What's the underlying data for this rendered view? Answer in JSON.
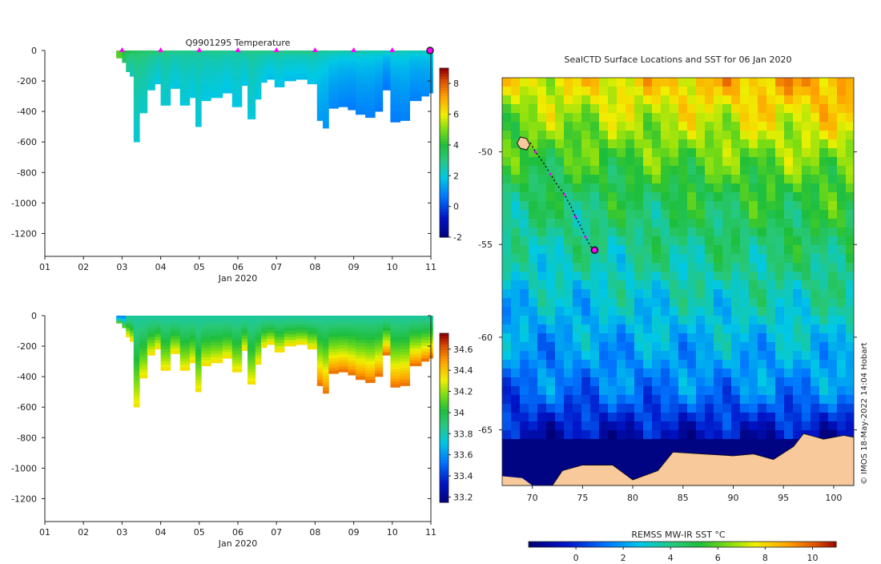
{
  "colors": {
    "axis": "#222222",
    "marker": "#ff00ff",
    "land": "#f7c99b",
    "water_dark": "#0a0a78"
  },
  "chart_data": [
    {
      "id": "temperature",
      "type": "heatmap",
      "title": "Q9901295  Temperature",
      "xlabel": "Jan 2020",
      "x_ticks": [
        "01",
        "02",
        "03",
        "04",
        "05",
        "06",
        "07",
        "08",
        "09",
        "10",
        "11"
      ],
      "y_ticks": [
        0,
        -200,
        -400,
        -600,
        -800,
        -1000,
        -1200
      ],
      "ylim": [
        -1350,
        0
      ],
      "xlim": [
        1,
        11
      ],
      "colorbar": {
        "ticks": [
          -2,
          0,
          2,
          4,
          6,
          8
        ],
        "range": [
          -2,
          9
        ]
      },
      "surfacing_markers_days": [
        3,
        4,
        5,
        6,
        7,
        8,
        9,
        10,
        11
      ],
      "profiles": [
        {
          "day": 2.85,
          "depth": 50,
          "surface_value": 4.6,
          "deep_value": 4.6
        },
        {
          "day": 3.0,
          "depth": 80,
          "surface_value": 4.0,
          "deep_value": 3.4
        },
        {
          "day": 3.1,
          "depth": 140,
          "surface_value": 3.8,
          "deep_value": 2.8
        },
        {
          "day": 3.2,
          "depth": 170,
          "surface_value": 3.6,
          "deep_value": 2.4
        },
        {
          "day": 3.3,
          "depth": 600,
          "surface_value": 3.5,
          "deep_value": 2.2
        },
        {
          "day": 3.45,
          "depth": 410,
          "surface_value": 3.4,
          "deep_value": 2.3
        },
        {
          "day": 3.65,
          "depth": 260,
          "surface_value": 3.3,
          "deep_value": 2.2
        },
        {
          "day": 3.85,
          "depth": 220,
          "surface_value": 3.2,
          "deep_value": 2.0
        },
        {
          "day": 4.0,
          "depth": 360,
          "surface_value": 3.1,
          "deep_value": 2.2
        },
        {
          "day": 4.25,
          "depth": 250,
          "surface_value": 3.0,
          "deep_value": 2.0
        },
        {
          "day": 4.5,
          "depth": 360,
          "surface_value": 3.0,
          "deep_value": 2.1
        },
        {
          "day": 4.75,
          "depth": 310,
          "surface_value": 3.0,
          "deep_value": 2.0
        },
        {
          "day": 4.9,
          "depth": 500,
          "surface_value": 2.9,
          "deep_value": 2.1
        },
        {
          "day": 5.05,
          "depth": 330,
          "surface_value": 2.9,
          "deep_value": 2.0
        },
        {
          "day": 5.3,
          "depth": 310,
          "surface_value": 3.0,
          "deep_value": 2.0
        },
        {
          "day": 5.6,
          "depth": 280,
          "surface_value": 2.9,
          "deep_value": 1.9
        },
        {
          "day": 5.85,
          "depth": 370,
          "surface_value": 2.9,
          "deep_value": 2.0
        },
        {
          "day": 6.1,
          "depth": 230,
          "surface_value": 3.0,
          "deep_value": 1.9
        },
        {
          "day": 6.25,
          "depth": 450,
          "surface_value": 3.0,
          "deep_value": 2.1
        },
        {
          "day": 6.45,
          "depth": 320,
          "surface_value": 3.0,
          "deep_value": 2.0
        },
        {
          "day": 6.6,
          "depth": 210,
          "surface_value": 3.0,
          "deep_value": 1.9
        },
        {
          "day": 6.75,
          "depth": 190,
          "surface_value": 3.0,
          "deep_value": 1.8
        },
        {
          "day": 6.95,
          "depth": 240,
          "surface_value": 3.0,
          "deep_value": 1.9
        },
        {
          "day": 7.2,
          "depth": 200,
          "surface_value": 3.0,
          "deep_value": 1.8
        },
        {
          "day": 7.5,
          "depth": 190,
          "surface_value": 3.0,
          "deep_value": 1.8
        },
        {
          "day": 7.8,
          "depth": 220,
          "surface_value": 3.0,
          "deep_value": 1.9
        },
        {
          "day": 8.05,
          "depth": 460,
          "surface_value": 2.8,
          "deep_value": 1.3
        },
        {
          "day": 8.2,
          "depth": 510,
          "surface_value": 2.7,
          "deep_value": 1.2
        },
        {
          "day": 8.35,
          "depth": 380,
          "surface_value": 2.7,
          "deep_value": 1.0
        },
        {
          "day": 8.6,
          "depth": 370,
          "surface_value": 2.6,
          "deep_value": 0.9
        },
        {
          "day": 8.85,
          "depth": 390,
          "surface_value": 2.6,
          "deep_value": 0.8
        },
        {
          "day": 9.05,
          "depth": 420,
          "surface_value": 2.6,
          "deep_value": 0.9
        },
        {
          "day": 9.3,
          "depth": 440,
          "surface_value": 2.5,
          "deep_value": 0.9
        },
        {
          "day": 9.55,
          "depth": 400,
          "surface_value": 2.5,
          "deep_value": 0.8
        },
        {
          "day": 9.75,
          "depth": 260,
          "surface_value": 2.4,
          "deep_value": 0.7
        },
        {
          "day": 9.95,
          "depth": 470,
          "surface_value": 2.5,
          "deep_value": 0.8
        },
        {
          "day": 10.2,
          "depth": 460,
          "surface_value": 2.5,
          "deep_value": 0.9
        },
        {
          "day": 10.45,
          "depth": 330,
          "surface_value": 2.4,
          "deep_value": 0.9
        },
        {
          "day": 10.75,
          "depth": 300,
          "surface_value": 2.4,
          "deep_value": 1.0
        },
        {
          "day": 10.95,
          "depth": 280,
          "surface_value": 2.4,
          "deep_value": 1.1
        }
      ]
    },
    {
      "id": "salinity",
      "type": "heatmap",
      "title": "",
      "xlabel": "Jan 2020",
      "x_ticks": [
        "01",
        "02",
        "03",
        "04",
        "05",
        "06",
        "07",
        "08",
        "09",
        "10",
        "11"
      ],
      "y_ticks": [
        0,
        -200,
        -400,
        -600,
        -800,
        -1000,
        -1200
      ],
      "ylim": [
        -1350,
        0
      ],
      "xlim": [
        1,
        11
      ],
      "colorbar": {
        "ticks": [
          33.2,
          33.4,
          33.6,
          33.8,
          34,
          34.2,
          34.4,
          34.6
        ],
        "range": [
          33.15,
          34.75
        ]
      },
      "profiles_from": "temperature",
      "surface_value": 33.85,
      "deep_value": 34.35
    },
    {
      "id": "sst_map",
      "type": "heatmap",
      "title": "SealCTD Surface Locations and SST for 06 Jan 2020",
      "xlabel": "",
      "x_ticks": [
        70,
        75,
        80,
        85,
        90,
        95,
        100
      ],
      "y_ticks": [
        -50,
        -55,
        -60,
        -65
      ],
      "xlim": [
        67,
        102
      ],
      "ylim": [
        -68,
        -46
      ],
      "colorbar": {
        "label": "REMSS MW-IR SST °C",
        "ticks": [
          0,
          2,
          4,
          6,
          8,
          10
        ],
        "range": [
          -2,
          11
        ]
      },
      "sst_field_description_points": [
        {
          "lon": 68,
          "lat": -46,
          "sst": 7.5
        },
        {
          "lon": 100,
          "lat": -46,
          "sst": 9.0
        },
        {
          "lon": 68,
          "lat": -52,
          "sst": 4.5
        },
        {
          "lon": 100,
          "lat": -52,
          "sst": 5.5
        },
        {
          "lon": 68,
          "lat": -58,
          "sst": 2.5
        },
        {
          "lon": 100,
          "lat": -58,
          "sst": 3.5
        },
        {
          "lon": 68,
          "lat": -63,
          "sst": 1.0
        },
        {
          "lon": 100,
          "lat": -63,
          "sst": 1.5
        },
        {
          "lon": 68,
          "lat": -66,
          "sst": -1.5
        },
        {
          "lon": 100,
          "lat": -66,
          "sst": -1.5
        }
      ],
      "track": [
        {
          "lon": 69.8,
          "lat": -49.5
        },
        {
          "lon": 70.3,
          "lat": -50.0
        },
        {
          "lon": 71.0,
          "lat": -50.5
        },
        {
          "lon": 71.8,
          "lat": -51.2
        },
        {
          "lon": 72.5,
          "lat": -51.8
        },
        {
          "lon": 73.2,
          "lat": -52.3
        },
        {
          "lon": 73.8,
          "lat": -52.9
        },
        {
          "lon": 74.3,
          "lat": -53.5
        },
        {
          "lon": 74.8,
          "lat": -54.0
        },
        {
          "lon": 75.3,
          "lat": -54.6
        },
        {
          "lon": 75.8,
          "lat": -55.1
        },
        {
          "lon": 76.2,
          "lat": -55.3
        }
      ],
      "current_position": {
        "lon": 76.2,
        "lat": -55.3
      },
      "credit": "© IMOS 18-May-2022 14:04 Hobart"
    }
  ]
}
